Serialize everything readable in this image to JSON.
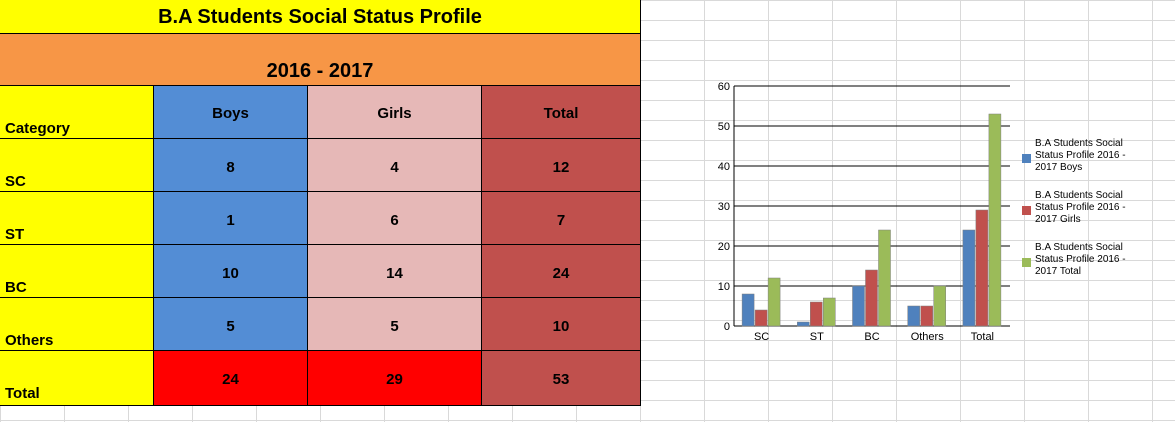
{
  "sheet": {
    "title": "B.A Students Social Status Profile",
    "year": "2016 - 2017",
    "headers": [
      "Category",
      "Boys",
      "Girls",
      "Total"
    ],
    "rows": [
      {
        "category": "SC",
        "boys": "8",
        "girls": "4",
        "total": "12"
      },
      {
        "category": "ST",
        "boys": "1",
        "girls": "6",
        "total": "7"
      },
      {
        "category": "BC",
        "boys": "10",
        "girls": "14",
        "total": "24"
      },
      {
        "category": "Others",
        "boys": "5",
        "girls": "5",
        "total": "10"
      },
      {
        "category": "Total",
        "boys": "24",
        "girls": "29",
        "total": "53"
      }
    ]
  },
  "colors": {
    "title_bg": "#ffff00",
    "year_bg": "#f79646",
    "boys_bg": "#538dd5",
    "girls_bg": "#e6b8b7",
    "total_bg": "#c0504d",
    "total_row_bg": "#ff0000"
  },
  "chart_data": {
    "type": "bar",
    "categories": [
      "SC",
      "ST",
      "BC",
      "Others",
      "Total"
    ],
    "series": [
      {
        "name": "B.A Students Social Status Profile 2016 - 2017 Boys",
        "values": [
          8,
          1,
          10,
          5,
          24
        ],
        "color": "#4f81bd"
      },
      {
        "name": "B.A Students Social Status Profile 2016 - 2017 Girls",
        "values": [
          4,
          6,
          14,
          5,
          29
        ],
        "color": "#c0504d"
      },
      {
        "name": "B.A Students Social Status Profile 2016 - 2017 Total",
        "values": [
          12,
          7,
          24,
          10,
          53
        ],
        "color": "#9bbb59"
      }
    ],
    "ylim": [
      0,
      60
    ],
    "yticks": [
      0,
      10,
      20,
      30,
      40,
      50,
      60
    ],
    "grid": true,
    "legend": "right"
  }
}
